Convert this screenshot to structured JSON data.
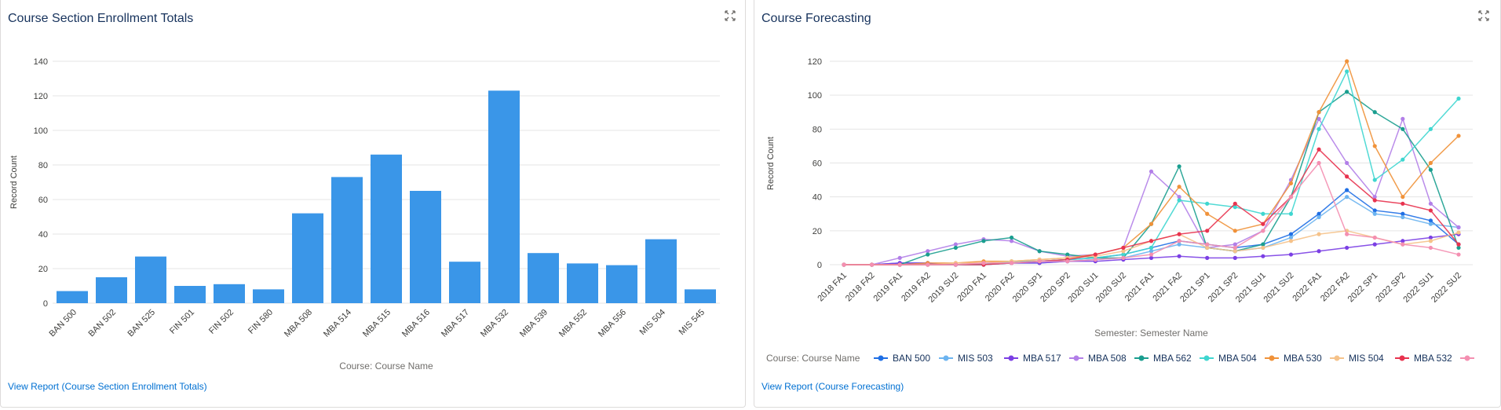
{
  "panels": {
    "enrollment": {
      "title": "Course Section Enrollment Totals",
      "view_report": "View Report (Course Section Enrollment Totals)"
    },
    "forecasting": {
      "title": "Course Forecasting",
      "view_report": "View Report (Course Forecasting)"
    }
  },
  "chart_data": [
    {
      "type": "bar",
      "title": "Course Section Enrollment Totals",
      "xlabel": "Course: Course Name",
      "ylabel": "Record Count",
      "ylim": [
        0,
        140
      ],
      "yticks": [
        0,
        20,
        40,
        60,
        80,
        100,
        120,
        140
      ],
      "grid": true,
      "color": "#3a96e8",
      "categories": [
        "BAN 500",
        "BAN 502",
        "BAN 525",
        "FIN 501",
        "FIN 502",
        "FIN 580",
        "MBA 508",
        "MBA 514",
        "MBA 515",
        "MBA 516",
        "MBA 517",
        "MBA 532",
        "MBA 539",
        "MBA 552",
        "MBA 556",
        "MIS 504",
        "MIS 545"
      ],
      "values": [
        7,
        15,
        27,
        10,
        11,
        8,
        52,
        73,
        86,
        65,
        24,
        123,
        29,
        23,
        22,
        37,
        8
      ]
    },
    {
      "type": "line",
      "title": "Course Forecasting",
      "xlabel": "Semester: Semester Name",
      "ylabel": "Record Count",
      "legend_title": "Course: Course Name",
      "legend_position": "bottom",
      "ylim": [
        0,
        120
      ],
      "yticks": [
        0,
        20,
        40,
        60,
        80,
        100,
        120
      ],
      "grid": true,
      "x": [
        "2018 FA1",
        "2018 FA2",
        "2019 FA1",
        "2019 FA2",
        "2019 SU2",
        "2020 FA1",
        "2020 FA2",
        "2020 SP1",
        "2020 SP2",
        "2020 SU1",
        "2020 SU2",
        "2021 FA1",
        "2021 FA2",
        "2021 SP1",
        "2021 SP2",
        "2021 SU1",
        "2021 SU2",
        "2022 FA1",
        "2022 FA2",
        "2022 SP1",
        "2022 SP2",
        "2022 SU1",
        "2022 SU2"
      ],
      "series": [
        {
          "name": "BAN 500",
          "color": "#1f6fe5",
          "values": [
            0,
            0,
            1,
            1,
            0,
            0,
            1,
            2,
            3,
            4,
            6,
            10,
            14,
            12,
            10,
            12,
            18,
            30,
            44,
            32,
            30,
            26,
            12
          ]
        },
        {
          "name": "MIS 503",
          "color": "#6cb4f0",
          "values": [
            0,
            0,
            0,
            0,
            0,
            0,
            1,
            1,
            2,
            3,
            4,
            8,
            12,
            10,
            8,
            10,
            16,
            28,
            40,
            30,
            28,
            24,
            22
          ]
        },
        {
          "name": "MBA 517",
          "color": "#7b3fe4",
          "values": [
            0,
            0,
            1,
            1,
            0,
            1,
            1,
            1,
            2,
            2,
            3,
            4,
            5,
            4,
            4,
            5,
            6,
            8,
            10,
            12,
            14,
            16,
            18
          ]
        },
        {
          "name": "MBA 508",
          "color": "#b27fe8",
          "values": [
            0,
            0,
            4,
            8,
            12,
            15,
            14,
            8,
            5,
            6,
            10,
            55,
            40,
            10,
            12,
            20,
            50,
            86,
            60,
            40,
            86,
            36,
            22
          ]
        },
        {
          "name": "MBA 562",
          "color": "#1a9e8f",
          "values": [
            0,
            0,
            0,
            6,
            10,
            14,
            16,
            8,
            6,
            4,
            4,
            24,
            58,
            10,
            8,
            12,
            40,
            90,
            102,
            90,
            80,
            56,
            10
          ]
        },
        {
          "name": "MBA 504",
          "color": "#3fd6d0",
          "values": [
            0,
            0,
            0,
            0,
            0,
            0,
            2,
            2,
            3,
            4,
            6,
            10,
            38,
            36,
            34,
            30,
            30,
            80,
            114,
            50,
            62,
            80,
            98
          ]
        },
        {
          "name": "MBA 530",
          "color": "#f0923a",
          "values": [
            0,
            0,
            0,
            1,
            1,
            2,
            2,
            3,
            4,
            6,
            10,
            24,
            46,
            30,
            20,
            24,
            48,
            90,
            120,
            70,
            40,
            60,
            76
          ]
        },
        {
          "name": "MIS 504",
          "color": "#f5c28a",
          "values": [
            0,
            0,
            0,
            0,
            1,
            1,
            2,
            3,
            4,
            5,
            8,
            14,
            18,
            10,
            8,
            10,
            14,
            18,
            20,
            16,
            12,
            14,
            19
          ]
        },
        {
          "name": "MBA 532",
          "color": "#e8334f",
          "values": [
            0,
            0,
            0,
            0,
            0,
            0,
            1,
            2,
            3,
            6,
            10,
            14,
            18,
            20,
            36,
            24,
            40,
            68,
            52,
            38,
            36,
            32,
            12
          ]
        },
        {
          "name": "",
          "color": "#f48fb1",
          "values": [
            0,
            0,
            0,
            0,
            0,
            1,
            1,
            2,
            2,
            3,
            4,
            6,
            14,
            12,
            10,
            20,
            40,
            60,
            18,
            16,
            12,
            10,
            6
          ]
        }
      ]
    }
  ]
}
